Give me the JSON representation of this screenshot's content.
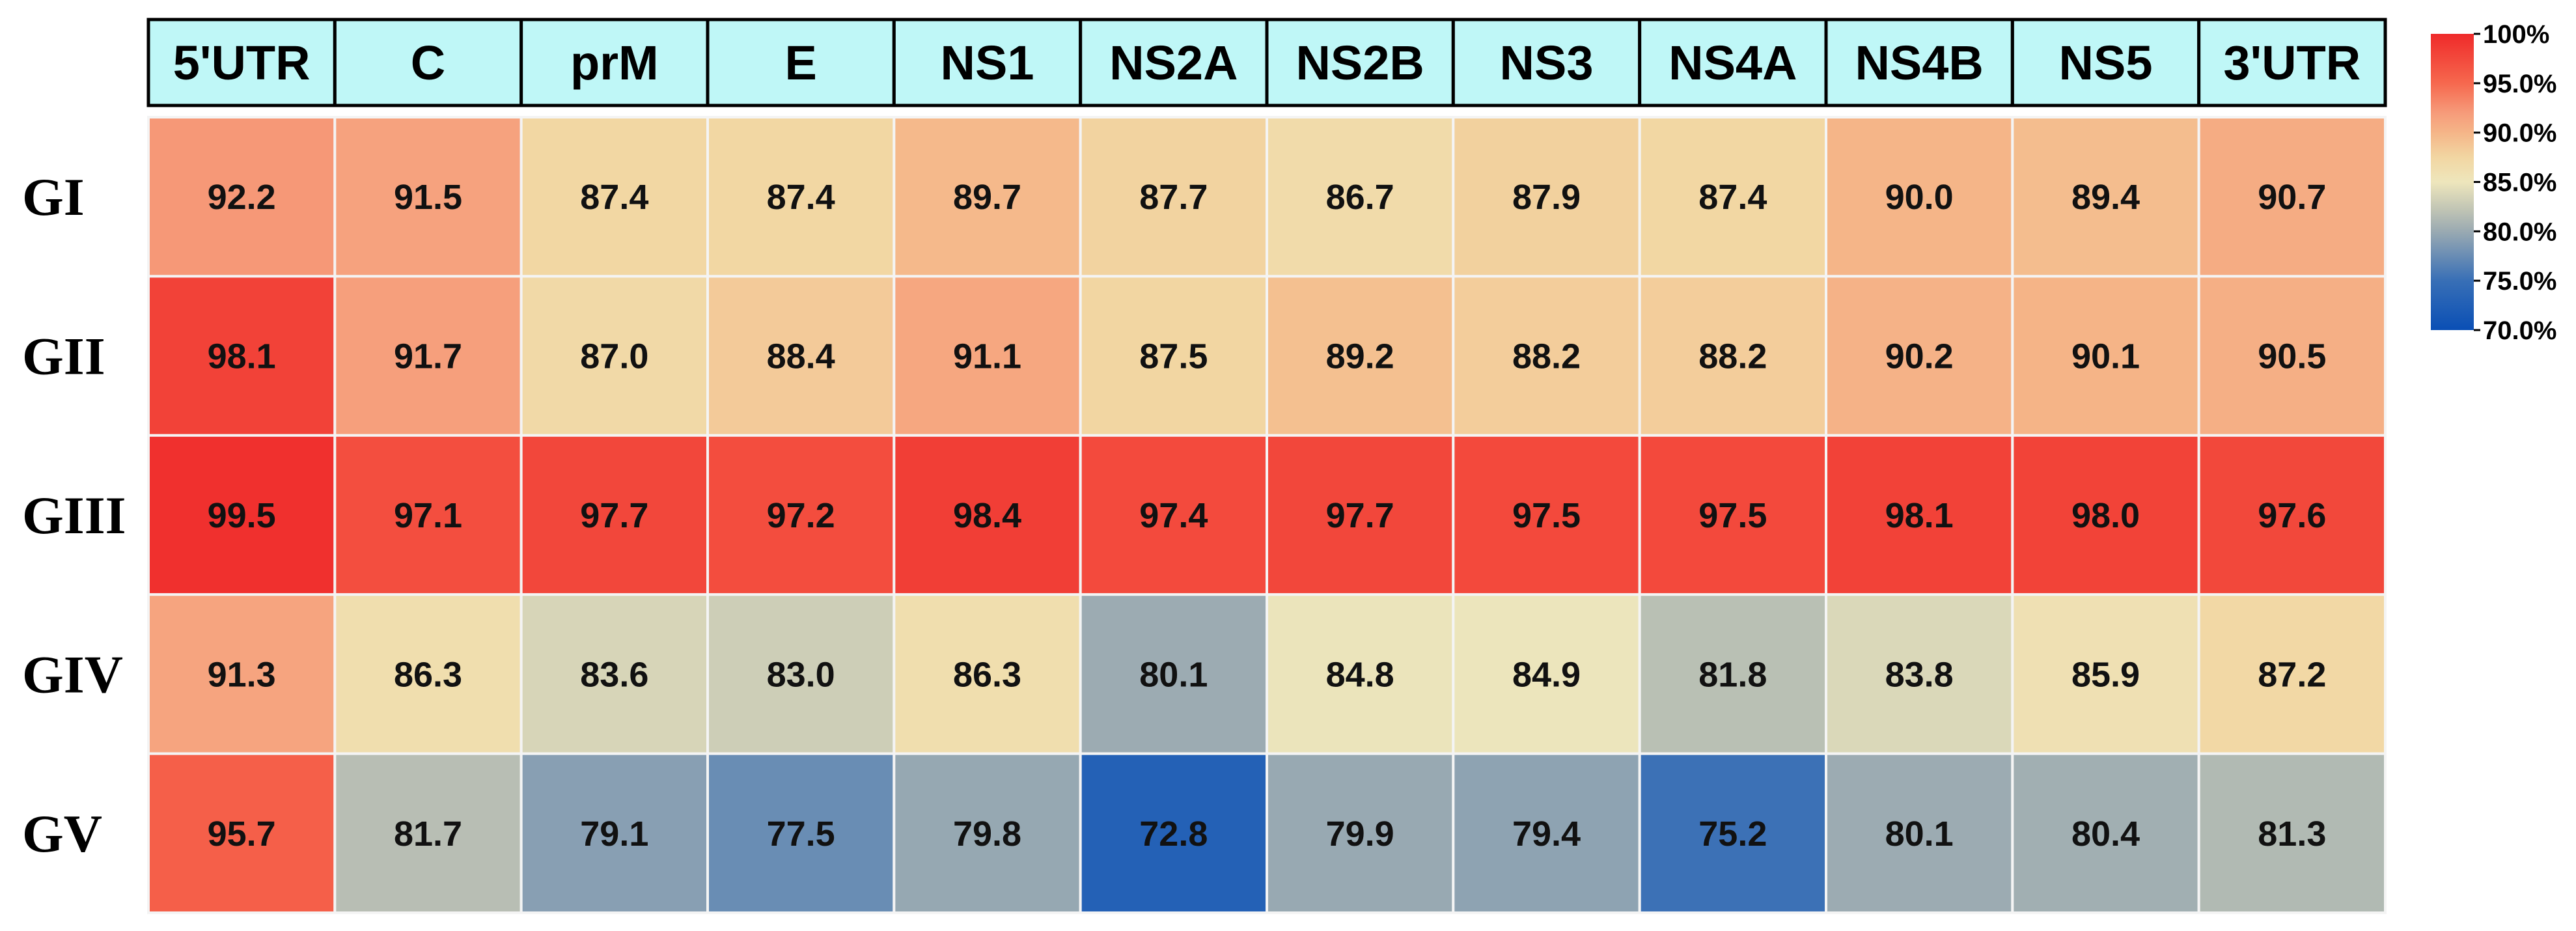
{
  "chart_data": {
    "type": "heatmap",
    "title": "",
    "xlabel": "",
    "ylabel": "",
    "columns": [
      "5'UTR",
      "C",
      "prM",
      "E",
      "NS1",
      "NS2A",
      "NS2B",
      "NS3",
      "NS4A",
      "NS4B",
      "NS5",
      "3'UTR"
    ],
    "rows": [
      "GI",
      "GII",
      "GIII",
      "GIV",
      "GV"
    ],
    "values": [
      [
        92.2,
        91.5,
        87.4,
        87.4,
        89.7,
        87.7,
        86.7,
        87.9,
        87.4,
        90.0,
        89.4,
        90.7
      ],
      [
        98.1,
        91.7,
        87.0,
        88.4,
        91.1,
        87.5,
        89.2,
        88.2,
        88.2,
        90.2,
        90.1,
        90.5
      ],
      [
        99.5,
        97.1,
        97.7,
        97.2,
        98.4,
        97.4,
        97.7,
        97.5,
        97.5,
        98.1,
        98.0,
        97.6
      ],
      [
        91.3,
        86.3,
        83.6,
        83.0,
        86.3,
        80.1,
        84.8,
        84.9,
        81.8,
        83.8,
        85.9,
        87.2
      ],
      [
        95.7,
        81.7,
        79.1,
        77.5,
        79.8,
        72.8,
        79.9,
        79.4,
        75.2,
        80.1,
        80.4,
        81.3
      ]
    ],
    "value_labels": [
      [
        "92.2",
        "91.5",
        "87.4",
        "87.4",
        "89.7",
        "87.7",
        "86.7",
        "87.9",
        "87.4",
        "90.0",
        "89.4",
        "90.7"
      ],
      [
        "98.1",
        "91.7",
        "87.0",
        "88.4",
        "91.1",
        "87.5",
        "89.2",
        "88.2",
        "88.2",
        "90.2",
        "90.1",
        "90.5"
      ],
      [
        "99.5",
        "97.1",
        "97.7",
        "97.2",
        "98.4",
        "97.4",
        "97.7",
        "97.5",
        "97.5",
        "98.1",
        "98.0",
        "97.6"
      ],
      [
        "91.3",
        "86.3",
        "83.6",
        "83.0",
        "86.3",
        "80.1",
        "84.8",
        "84.9",
        "81.8",
        "83.8",
        "85.9",
        "87.2"
      ],
      [
        "95.7",
        "81.7",
        "79.1",
        "77.5",
        "79.8",
        "72.8",
        "79.9",
        "79.4",
        "75.2",
        "80.1",
        "80.4",
        "81.3"
      ]
    ],
    "header_color": "#bff7f7",
    "color_scale": {
      "min": 70,
      "max": 100,
      "stops": [
        {
          "value": 70,
          "color": "#0a4fb5"
        },
        {
          "value": 75,
          "color": "#386fb6"
        },
        {
          "value": 80,
          "color": "#9aaab2"
        },
        {
          "value": 82,
          "color": "#bdc2b4"
        },
        {
          "value": 85,
          "color": "#eee6bc"
        },
        {
          "value": 87.5,
          "color": "#f2d6a2"
        },
        {
          "value": 90,
          "color": "#f5b588"
        },
        {
          "value": 92,
          "color": "#f69b7a"
        },
        {
          "value": 95,
          "color": "#f6684e"
        },
        {
          "value": 100,
          "color": "#ef2a2a"
        }
      ],
      "ticks": [
        100,
        95,
        90,
        85,
        80,
        75,
        70
      ],
      "tick_labels": [
        "100%",
        "95.0%",
        "90.0%",
        "85.0%",
        "80.0%",
        "75.0%",
        "70.0%"
      ]
    },
    "legend_position": "right"
  }
}
